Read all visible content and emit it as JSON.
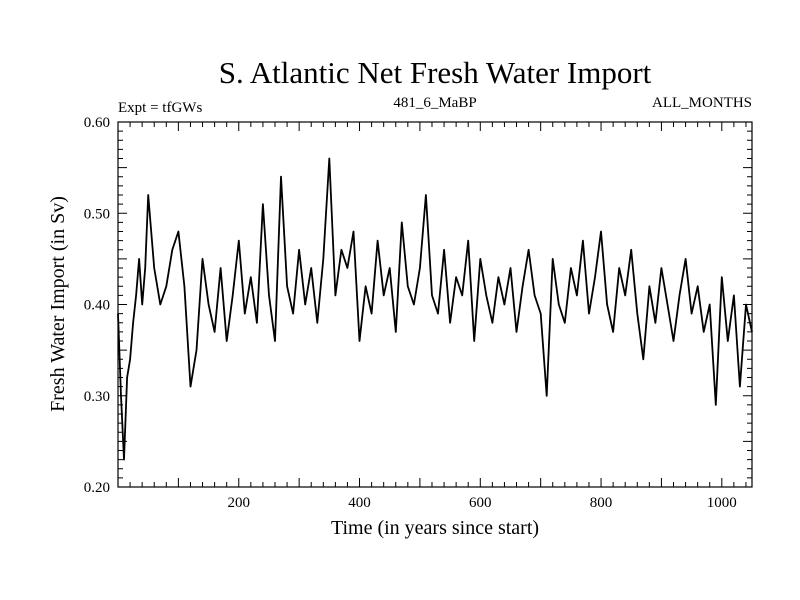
{
  "chart_data": {
    "type": "line",
    "title": "S. Atlantic Net Fresh Water Import",
    "subtitle_left": "Expt = tfGWs",
    "subtitle_center": "481_6_MaBP",
    "subtitle_right": "ALL_MONTHS",
    "xlabel": "Time (in years since start)",
    "ylabel": "Fresh Water Import (in Sv)",
    "xlim": [
      0,
      1050
    ],
    "ylim": [
      0.2,
      0.6
    ],
    "x_ticks": [
      200,
      400,
      600,
      800,
      1000
    ],
    "x_tick_labels": [
      "200",
      "400",
      "600",
      "800",
      "1000"
    ],
    "y_ticks": [
      0.2,
      0.3,
      0.4,
      0.5,
      0.6
    ],
    "y_tick_labels": [
      "0.20",
      "0.30",
      "0.40",
      "0.50",
      "0.60"
    ],
    "grid": false,
    "series": [
      {
        "name": "fresh water import",
        "color": "#000000",
        "x": [
          0,
          5,
          10,
          15,
          20,
          25,
          30,
          35,
          40,
          45,
          50,
          60,
          70,
          80,
          90,
          100,
          110,
          120,
          130,
          140,
          150,
          160,
          170,
          180,
          190,
          200,
          210,
          220,
          230,
          240,
          250,
          260,
          270,
          280,
          290,
          300,
          310,
          320,
          330,
          340,
          350,
          360,
          370,
          380,
          390,
          400,
          410,
          420,
          430,
          440,
          450,
          460,
          470,
          480,
          490,
          500,
          510,
          520,
          530,
          540,
          550,
          560,
          570,
          580,
          590,
          600,
          610,
          620,
          630,
          640,
          650,
          660,
          670,
          680,
          690,
          700,
          710,
          720,
          730,
          740,
          750,
          760,
          770,
          780,
          790,
          800,
          810,
          820,
          830,
          840,
          850,
          860,
          870,
          880,
          890,
          900,
          910,
          920,
          930,
          940,
          950,
          960,
          970,
          980,
          990,
          1000,
          1010,
          1020,
          1030,
          1040,
          1050
        ],
        "y": [
          0.39,
          0.3,
          0.23,
          0.32,
          0.34,
          0.38,
          0.41,
          0.45,
          0.4,
          0.44,
          0.52,
          0.44,
          0.4,
          0.42,
          0.46,
          0.48,
          0.42,
          0.31,
          0.35,
          0.45,
          0.4,
          0.37,
          0.44,
          0.36,
          0.41,
          0.47,
          0.39,
          0.43,
          0.38,
          0.51,
          0.41,
          0.36,
          0.54,
          0.42,
          0.39,
          0.46,
          0.4,
          0.44,
          0.38,
          0.45,
          0.56,
          0.41,
          0.46,
          0.44,
          0.48,
          0.36,
          0.42,
          0.39,
          0.47,
          0.41,
          0.44,
          0.37,
          0.49,
          0.42,
          0.4,
          0.44,
          0.52,
          0.41,
          0.39,
          0.46,
          0.38,
          0.43,
          0.41,
          0.47,
          0.36,
          0.45,
          0.41,
          0.38,
          0.43,
          0.4,
          0.44,
          0.37,
          0.42,
          0.46,
          0.41,
          0.39,
          0.3,
          0.45,
          0.4,
          0.38,
          0.44,
          0.41,
          0.47,
          0.39,
          0.43,
          0.48,
          0.4,
          0.37,
          0.44,
          0.41,
          0.46,
          0.39,
          0.34,
          0.42,
          0.38,
          0.44,
          0.4,
          0.36,
          0.41,
          0.45,
          0.39,
          0.42,
          0.37,
          0.4,
          0.29,
          0.43,
          0.36,
          0.41,
          0.31,
          0.4,
          0.37
        ]
      }
    ]
  }
}
